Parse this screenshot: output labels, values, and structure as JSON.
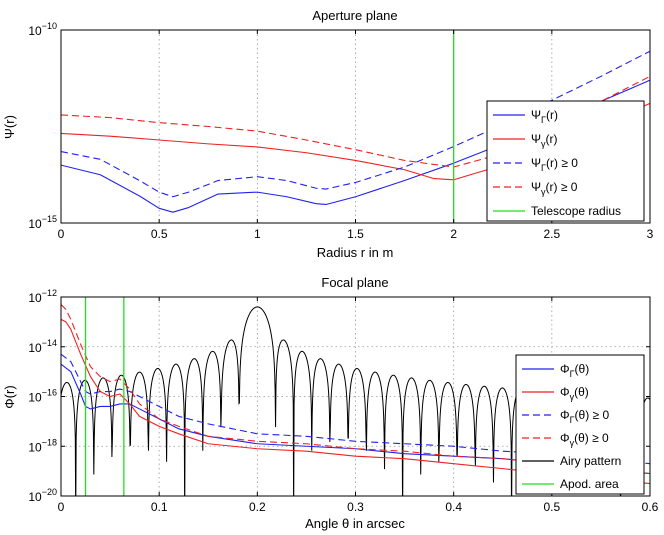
{
  "chart_data": [
    {
      "type": "line",
      "title": "Aperture plane",
      "xlabel": "Radius r in m",
      "ylabel": "Ψ(r)",
      "xlim": [
        0,
        3
      ],
      "ylim_log10": [
        -15,
        -10
      ],
      "xticks": [
        0,
        0.5,
        1,
        1.5,
        2,
        2.5,
        3
      ],
      "xtick_labels": [
        "0",
        "0.5",
        "1",
        "1.5",
        "2",
        "2.5",
        "3"
      ],
      "ytick_labels": [
        {
          "base": "10",
          "exp": "−10"
        },
        {
          "base": "10",
          "exp": "−15"
        }
      ],
      "legend_position": "right-lower",
      "series": [
        {
          "key": "psi_G",
          "legend_main": "Ψ",
          "legend_sub": "Γ",
          "legend_rest": "(r)",
          "color": "#2222ee",
          "dash": "",
          "x": [
            0,
            0.2,
            0.4,
            0.5,
            0.57,
            0.65,
            0.8,
            1.0,
            1.15,
            1.3,
            1.35,
            1.5,
            1.75,
            2.0,
            2.25,
            2.5,
            2.75,
            3.0
          ],
          "log10": [
            -13.5,
            -13.75,
            -14.3,
            -14.62,
            -14.72,
            -14.6,
            -14.25,
            -14.2,
            -14.32,
            -14.5,
            -14.52,
            -14.32,
            -13.9,
            -13.45,
            -12.95,
            -12.4,
            -11.85,
            -11.3
          ]
        },
        {
          "key": "psi_g",
          "legend_main": "Ψ",
          "legend_sub": "γ",
          "legend_rest": "(r)",
          "color": "#ee2222",
          "dash": "",
          "x": [
            0,
            0.25,
            0.5,
            0.75,
            1.0,
            1.25,
            1.5,
            1.75,
            1.9,
            2.0,
            2.25,
            2.5,
            2.75,
            3.0
          ],
          "log10": [
            -12.68,
            -12.75,
            -12.85,
            -12.95,
            -13.03,
            -13.18,
            -13.38,
            -13.62,
            -13.85,
            -13.88,
            -13.5,
            -13.0,
            -12.45,
            -11.9
          ]
        },
        {
          "key": "psi_G_pos",
          "legend_main": "Ψ",
          "legend_sub": "Γ",
          "legend_rest": "(r) ≥ 0",
          "color": "#2222ee",
          "dash": "7 4",
          "x": [
            0,
            0.2,
            0.4,
            0.5,
            0.57,
            0.65,
            0.8,
            1.0,
            1.15,
            1.3,
            1.35,
            1.5,
            1.75,
            2.0,
            2.25,
            2.5,
            2.75,
            3.0
          ],
          "log10": [
            -13.15,
            -13.35,
            -13.9,
            -14.2,
            -14.32,
            -14.2,
            -13.9,
            -13.8,
            -13.9,
            -14.1,
            -14.12,
            -13.95,
            -13.55,
            -13.02,
            -12.45,
            -11.82,
            -11.2,
            -10.55
          ]
        },
        {
          "key": "psi_g_pos",
          "legend_main": "Ψ",
          "legend_sub": "γ",
          "legend_rest": "(r) ≥ 0",
          "color": "#ee2222",
          "dash": "7 4",
          "x": [
            0,
            0.25,
            0.5,
            0.75,
            1.0,
            1.25,
            1.5,
            1.75,
            2.0,
            2.25,
            2.5,
            2.75,
            3.0
          ],
          "log10": [
            -12.2,
            -12.27,
            -12.4,
            -12.5,
            -12.62,
            -12.85,
            -13.1,
            -13.38,
            -13.55,
            -13.2,
            -12.5,
            -11.85,
            -11.2
          ]
        },
        {
          "key": "tel_radius",
          "legend_main": "Telescope radius",
          "legend_sub": "",
          "legend_rest": "",
          "color": "#22dd22",
          "dash": "",
          "vertical_x": 2.0
        }
      ]
    },
    {
      "type": "line",
      "title": "Focal plane",
      "xlabel": "Angle θ in arcsec",
      "ylabel": "Φ(r)",
      "xlim": [
        0,
        0.6
      ],
      "ylim_log10": [
        -20,
        -12
      ],
      "xticks": [
        0,
        0.1,
        0.2,
        0.3,
        0.4,
        0.5,
        0.6
      ],
      "xtick_labels": [
        "0",
        "0.1",
        "0.2",
        "0.3",
        "0.4",
        "0.5",
        "0.6"
      ],
      "ytick_labels": [
        {
          "base": "10",
          "exp": "−12"
        },
        {
          "base": "10",
          "exp": "−14"
        },
        {
          "base": "10",
          "exp": "−16"
        },
        {
          "base": "10",
          "exp": "−18"
        },
        {
          "base": "10",
          "exp": "−20"
        }
      ],
      "legend_position": "right-lower",
      "airy": {
        "center": 0.2,
        "peak_log10": -12.4,
        "period": 0.0185,
        "min_log10": -20.0
      },
      "series": [
        {
          "key": "phi_G",
          "legend_main": "Φ",
          "legend_sub": "Γ",
          "legend_rest": "(θ)",
          "color": "#2222ee",
          "dash": "",
          "x": [
            0,
            0.01,
            0.02,
            0.025,
            0.03,
            0.04,
            0.05,
            0.06,
            0.07,
            0.08,
            0.1,
            0.12,
            0.15,
            0.2,
            0.25,
            0.3,
            0.35,
            0.4,
            0.45,
            0.5,
            0.55,
            0.6
          ],
          "log10": [
            -14.7,
            -15.0,
            -15.9,
            -16.4,
            -16.5,
            -16.4,
            -16.4,
            -16.3,
            -16.3,
            -16.5,
            -16.9,
            -17.3,
            -17.6,
            -17.9,
            -18.0,
            -18.1,
            -18.3,
            -18.4,
            -18.5,
            -18.7,
            -18.9,
            -19.1
          ]
        },
        {
          "key": "phi_g",
          "legend_main": "Φ",
          "legend_sub": "γ",
          "legend_rest": "(θ)",
          "color": "#ee2222",
          "dash": "",
          "x": [
            0,
            0.005,
            0.01,
            0.02,
            0.03,
            0.04,
            0.05,
            0.06,
            0.07,
            0.08,
            0.1,
            0.12,
            0.15,
            0.2,
            0.25,
            0.3,
            0.35,
            0.4,
            0.45,
            0.5,
            0.55,
            0.6
          ],
          "log10": [
            -12.9,
            -13.0,
            -13.3,
            -14.3,
            -15.2,
            -15.8,
            -16.0,
            -15.9,
            -16.3,
            -16.8,
            -17.2,
            -17.5,
            -17.9,
            -18.1,
            -18.2,
            -18.4,
            -18.5,
            -18.7,
            -18.9,
            -19.1,
            -19.3,
            -19.5
          ]
        },
        {
          "key": "phi_G_pos",
          "legend_main": "Φ",
          "legend_sub": "Γ",
          "legend_rest": "(θ) ≥ 0",
          "color": "#2222ee",
          "dash": "7 4",
          "x": [
            0,
            0.01,
            0.02,
            0.025,
            0.03,
            0.04,
            0.05,
            0.06,
            0.07,
            0.08,
            0.1,
            0.12,
            0.15,
            0.2,
            0.25,
            0.3,
            0.35,
            0.4,
            0.45,
            0.5,
            0.55,
            0.6
          ],
          "log10": [
            -14.3,
            -14.6,
            -15.4,
            -15.8,
            -15.9,
            -15.8,
            -15.8,
            -15.7,
            -15.8,
            -16.0,
            -16.4,
            -16.8,
            -17.1,
            -17.5,
            -17.6,
            -17.8,
            -17.9,
            -18.0,
            -18.2,
            -18.3,
            -18.5,
            -18.7
          ]
        },
        {
          "key": "phi_g_pos",
          "legend_main": "Φ",
          "legend_sub": "γ",
          "legend_rest": "(θ) ≥ 0",
          "color": "#ee2222",
          "dash": "7 4",
          "x": [
            0,
            0.005,
            0.01,
            0.02,
            0.03,
            0.04,
            0.05,
            0.06,
            0.07,
            0.08,
            0.1,
            0.12,
            0.15,
            0.2,
            0.25,
            0.3,
            0.35,
            0.4,
            0.45,
            0.5,
            0.55,
            0.6
          ],
          "log10": [
            -12.3,
            -12.5,
            -12.9,
            -13.9,
            -14.8,
            -15.2,
            -15.4,
            -15.3,
            -15.7,
            -16.3,
            -16.9,
            -17.2,
            -17.6,
            -17.8,
            -17.9,
            -18.1,
            -18.2,
            -18.4,
            -18.5,
            -18.7,
            -18.9,
            -19.1
          ]
        },
        {
          "key": "airy_line",
          "legend_main": "Airy pattern",
          "legend_sub": "",
          "legend_rest": "",
          "color": "#000000",
          "dash": ""
        },
        {
          "key": "apod_line",
          "legend_main": "Apod. area",
          "legend_sub": "",
          "legend_rest": "",
          "color": "#22dd22",
          "dash": "",
          "vertical_x": [
            0.025,
            0.064
          ]
        }
      ]
    }
  ]
}
